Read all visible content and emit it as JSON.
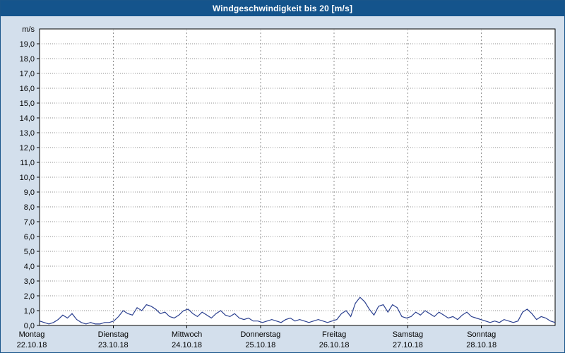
{
  "title": "Windgeschwindigkeit bis 20 [m/s]",
  "colors": {
    "titlebar_bg": "#14548c",
    "titlebar_text": "#ffffff",
    "chart_bg": "#d3dfec",
    "plot_bg": "#ffffff",
    "grid": "#8f8f8f",
    "axis": "#000000",
    "line": "#2a3f8f"
  },
  "chart_data": {
    "type": "line",
    "title": "Windgeschwindigkeit bis 20 [m/s]",
    "ylabel": "m/s",
    "xlabel": "",
    "ylim": [
      0,
      20
    ],
    "ytick_step": 1,
    "grid": true,
    "legend": "none",
    "yticks": [
      "0,0",
      "1,0",
      "2,0",
      "3,0",
      "4,0",
      "5,0",
      "6,0",
      "7,0",
      "8,0",
      "9,0",
      "10,0",
      "11,0",
      "12,0",
      "13,0",
      "14,0",
      "15,0",
      "16,0",
      "17,0",
      "18,0",
      "19,0"
    ],
    "categories": [
      {
        "day": "Montag",
        "date": "22.10.18"
      },
      {
        "day": "Dienstag",
        "date": "23.10.18"
      },
      {
        "day": "Mittwoch",
        "date": "24.10.18"
      },
      {
        "day": "Donnerstag",
        "date": "25.10.18"
      },
      {
        "day": "Freitag",
        "date": "26.10.18"
      },
      {
        "day": "Samstag",
        "date": "27.10.18"
      },
      {
        "day": "Sonntag",
        "date": "28.10.18"
      }
    ],
    "points_per_day": 16,
    "series": [
      {
        "name": "Windgeschwindigkeit",
        "values": [
          0.3,
          0.2,
          0.1,
          0.2,
          0.4,
          0.7,
          0.5,
          0.8,
          0.4,
          0.2,
          0.1,
          0.2,
          0.1,
          0.1,
          0.2,
          0.2,
          0.3,
          0.6,
          1.0,
          0.8,
          0.7,
          1.2,
          1.0,
          1.4,
          1.3,
          1.1,
          0.8,
          0.9,
          0.6,
          0.5,
          0.7,
          1.0,
          1.1,
          0.8,
          0.6,
          0.9,
          0.7,
          0.5,
          0.8,
          1.0,
          0.7,
          0.6,
          0.8,
          0.5,
          0.4,
          0.5,
          0.3,
          0.3,
          0.2,
          0.3,
          0.4,
          0.3,
          0.2,
          0.4,
          0.5,
          0.3,
          0.4,
          0.3,
          0.2,
          0.3,
          0.4,
          0.3,
          0.2,
          0.3,
          0.4,
          0.8,
          1.0,
          0.6,
          1.5,
          1.9,
          1.6,
          1.1,
          0.7,
          1.3,
          1.4,
          0.9,
          1.4,
          1.2,
          0.6,
          0.5,
          0.6,
          0.9,
          0.7,
          1.0,
          0.8,
          0.6,
          0.9,
          0.7,
          0.5,
          0.6,
          0.4,
          0.7,
          0.9,
          0.6,
          0.5,
          0.4,
          0.3,
          0.2,
          0.3,
          0.2,
          0.4,
          0.3,
          0.2,
          0.3,
          0.9,
          1.1,
          0.8,
          0.4,
          0.6,
          0.5,
          0.3,
          0.2
        ]
      }
    ]
  }
}
